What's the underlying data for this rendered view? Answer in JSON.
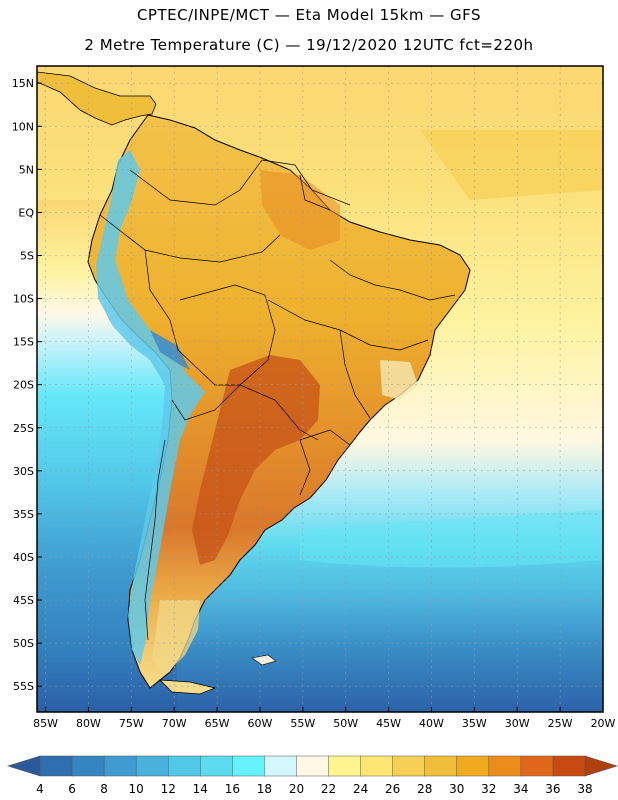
{
  "header": {
    "title_line1": "CPTEC/INPE/MCT —  Eta Model 15km — GFS",
    "title_line2": "2 Metre Temperature (C) — 19/12/2020 12UTC fct=220h"
  },
  "map": {
    "lon_range": [
      -86,
      -20
    ],
    "lat_range": [
      -58,
      17
    ],
    "lat_ticks": [
      {
        "value": 15,
        "label": "15N"
      },
      {
        "value": 10,
        "label": "10N"
      },
      {
        "value": 5,
        "label": "5N"
      },
      {
        "value": 0,
        "label": "EQ"
      },
      {
        "value": -5,
        "label": "5S"
      },
      {
        "value": -10,
        "label": "10S"
      },
      {
        "value": -15,
        "label": "15S"
      },
      {
        "value": -20,
        "label": "20S"
      },
      {
        "value": -25,
        "label": "25S"
      },
      {
        "value": -30,
        "label": "30S"
      },
      {
        "value": -35,
        "label": "35S"
      },
      {
        "value": -40,
        "label": "40S"
      },
      {
        "value": -45,
        "label": "45S"
      },
      {
        "value": -50,
        "label": "50S"
      },
      {
        "value": -55,
        "label": "55S"
      }
    ],
    "lon_ticks": [
      {
        "value": -85,
        "label": "85W"
      },
      {
        "value": -80,
        "label": "80W"
      },
      {
        "value": -75,
        "label": "75W"
      },
      {
        "value": -70,
        "label": "70W"
      },
      {
        "value": -65,
        "label": "65W"
      },
      {
        "value": -60,
        "label": "60W"
      },
      {
        "value": -55,
        "label": "55W"
      },
      {
        "value": -50,
        "label": "50W"
      },
      {
        "value": -45,
        "label": "45W"
      },
      {
        "value": -40,
        "label": "40W"
      },
      {
        "value": -35,
        "label": "35W"
      },
      {
        "value": -30,
        "label": "30W"
      },
      {
        "value": -25,
        "label": "25W"
      },
      {
        "value": -20,
        "label": "20W"
      }
    ]
  },
  "colorbar": {
    "labels": [
      "4",
      "6",
      "8",
      "10",
      "12",
      "14",
      "16",
      "18",
      "20",
      "22",
      "24",
      "26",
      "28",
      "30",
      "32",
      "34",
      "36",
      "38"
    ],
    "colors": [
      "#2f6fb0",
      "#3585c0",
      "#3f9bd0",
      "#48b2dd",
      "#52c8e8",
      "#5cdbee",
      "#66f2fc",
      "#d4f6fd",
      "#fff8e6",
      "#fff58e",
      "#fee672",
      "#f6d055",
      "#efbe3a",
      "#f0aa1f",
      "#eb8c1c",
      "#e0661a",
      "#c84a10"
    ],
    "low_arrow_color": "#2a5a9a",
    "high_arrow_color": "#b0400c"
  }
}
